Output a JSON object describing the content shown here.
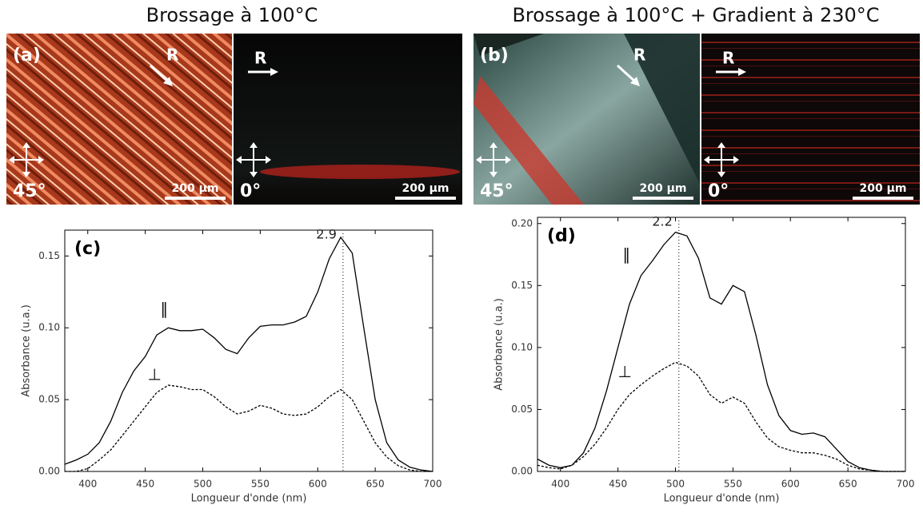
{
  "headers": [
    "Brossage à 100°C",
    "Brossage à 100°C + Gradient à 230°C"
  ],
  "micrographs": [
    {
      "label": "(a)",
      "arrow": "R",
      "angle": "45°",
      "scale": "200 µm"
    },
    {
      "arrow": "R",
      "angle": "0°",
      "scale": "200 µm"
    },
    {
      "label": "(b)",
      "arrow": "R",
      "angle": "45°",
      "scale": "200 µm"
    },
    {
      "arrow": "R",
      "angle": "0°",
      "scale": "200 µm"
    }
  ],
  "chart_data": [
    {
      "type": "line",
      "label": "(c)",
      "xlabel": "Longueur d'onde (nm)",
      "ylabel": "Absorbance (u.a.)",
      "xlim": [
        380,
        700
      ],
      "ylim": [
        0,
        0.168
      ],
      "xticks": [
        400,
        450,
        500,
        550,
        600,
        650,
        700
      ],
      "yticks": [
        {
          "value": 0,
          "label": "0.00"
        },
        {
          "value": 0.05,
          "label": "0.05"
        },
        {
          "value": 0.1,
          "label": "0.10"
        },
        {
          "value": 0.15,
          "label": "0.15"
        }
      ],
      "annotations": [
        {
          "text": "2.9",
          "x": 622
        }
      ],
      "x": [
        380,
        390,
        400,
        410,
        420,
        430,
        440,
        450,
        460,
        470,
        480,
        490,
        500,
        510,
        520,
        530,
        540,
        550,
        560,
        570,
        580,
        590,
        600,
        610,
        620,
        630,
        640,
        650,
        660,
        670,
        680,
        690,
        700
      ],
      "series": [
        {
          "name": "∥",
          "color": "#000000",
          "dash": false,
          "values": [
            0.005,
            0.008,
            0.012,
            0.02,
            0.035,
            0.055,
            0.07,
            0.08,
            0.095,
            0.1,
            0.098,
            0.098,
            0.099,
            0.093,
            0.085,
            0.082,
            0.093,
            0.101,
            0.102,
            0.102,
            0.104,
            0.108,
            0.125,
            0.148,
            0.163,
            0.152,
            0.1,
            0.05,
            0.02,
            0.008,
            0.003,
            0.001,
            0
          ]
        },
        {
          "name": "⊥",
          "color": "#000000",
          "dash": true,
          "values": [
            0,
            0,
            0.002,
            0.008,
            0.015,
            0.025,
            0.035,
            0.045,
            0.055,
            0.06,
            0.059,
            0.057,
            0.057,
            0.052,
            0.045,
            0.04,
            0.042,
            0.046,
            0.044,
            0.04,
            0.039,
            0.04,
            0.045,
            0.052,
            0.057,
            0.05,
            0.035,
            0.02,
            0.01,
            0.004,
            0.001,
            0,
            0
          ]
        }
      ]
    },
    {
      "type": "line",
      "label": "(d)",
      "xlabel": "Longueur d'onde (nm)",
      "ylabel": "Absorbance (u.a.)",
      "xlim": [
        380,
        700
      ],
      "ylim": [
        0,
        0.205
      ],
      "xticks": [
        400,
        450,
        500,
        550,
        600,
        650,
        700
      ],
      "yticks": [
        {
          "value": 0,
          "label": "0.00"
        },
        {
          "value": 0.05,
          "label": "0.05"
        },
        {
          "value": 0.1,
          "label": "0.10"
        },
        {
          "value": 0.15,
          "label": "0.15"
        },
        {
          "value": 0.2,
          "label": "0.20"
        }
      ],
      "annotations": [
        {
          "text": "2.2",
          "x": 503
        }
      ],
      "x": [
        380,
        390,
        400,
        410,
        420,
        430,
        440,
        450,
        460,
        470,
        480,
        490,
        500,
        510,
        520,
        530,
        540,
        550,
        560,
        570,
        580,
        590,
        600,
        610,
        620,
        630,
        640,
        650,
        660,
        670,
        680,
        690,
        700
      ],
      "series": [
        {
          "name": "∥",
          "color": "#000000",
          "dash": false,
          "values": [
            0.01,
            0.005,
            0.003,
            0.005,
            0.015,
            0.035,
            0.065,
            0.1,
            0.135,
            0.158,
            0.17,
            0.183,
            0.193,
            0.19,
            0.172,
            0.14,
            0.135,
            0.15,
            0.145,
            0.11,
            0.07,
            0.045,
            0.033,
            0.03,
            0.031,
            0.028,
            0.018,
            0.008,
            0.003,
            0.001,
            0,
            0,
            0
          ]
        },
        {
          "name": "⊥",
          "color": "#000000",
          "dash": true,
          "values": [
            0.005,
            0.003,
            0.002,
            0.005,
            0.012,
            0.022,
            0.035,
            0.05,
            0.062,
            0.07,
            0.077,
            0.083,
            0.088,
            0.085,
            0.077,
            0.062,
            0.055,
            0.06,
            0.055,
            0.04,
            0.027,
            0.02,
            0.017,
            0.015,
            0.015,
            0.013,
            0.01,
            0.005,
            0.002,
            0.001,
            0,
            0,
            0
          ]
        }
      ]
    }
  ]
}
